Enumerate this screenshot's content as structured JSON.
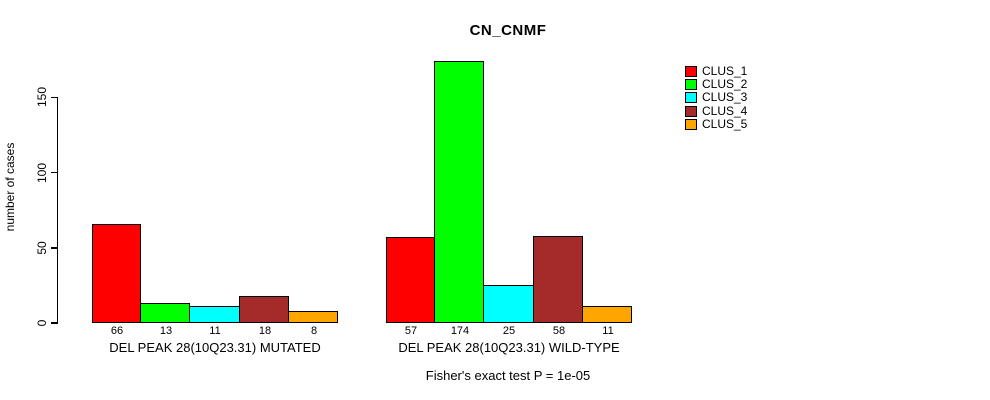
{
  "chart_data": {
    "type": "bar",
    "title": "CN_CNMF",
    "xlabel": "",
    "ylabel": "number of cases",
    "ylim": [
      0,
      175
    ],
    "yticks": [
      0,
      50,
      100,
      150
    ],
    "grid": false,
    "legend_position": "right-outside",
    "categories": [
      "DEL PEAK 28(10Q23.31) MUTATED",
      "DEL PEAK 28(10Q23.31) WILD-TYPE"
    ],
    "series": [
      {
        "name": "CLUS_1",
        "color": "#ff0000",
        "values": [
          66,
          57
        ]
      },
      {
        "name": "CLUS_2",
        "color": "#00ff00",
        "values": [
          13,
          174
        ]
      },
      {
        "name": "CLUS_3",
        "color": "#00ffff",
        "values": [
          11,
          25
        ]
      },
      {
        "name": "CLUS_4",
        "color": "#a52a2a",
        "values": [
          18,
          58
        ]
      },
      {
        "name": "CLUS_5",
        "color": "#ffa500",
        "values": [
          8,
          11
        ]
      }
    ],
    "bar_value_labels_shown": true,
    "annotation": "Fisher's exact test P = 1e-05"
  },
  "legend": {
    "items": [
      {
        "label": "CLUS_1",
        "color": "#ff0000"
      },
      {
        "label": "CLUS_2",
        "color": "#00ff00"
      },
      {
        "label": "CLUS_3",
        "color": "#00ffff"
      },
      {
        "label": "CLUS_4",
        "color": "#a52a2a"
      },
      {
        "label": "CLUS_5",
        "color": "#ffa500"
      }
    ]
  },
  "colors": {
    "bar_border": "#000000",
    "axis": "#000000",
    "background": "#ffffff"
  }
}
